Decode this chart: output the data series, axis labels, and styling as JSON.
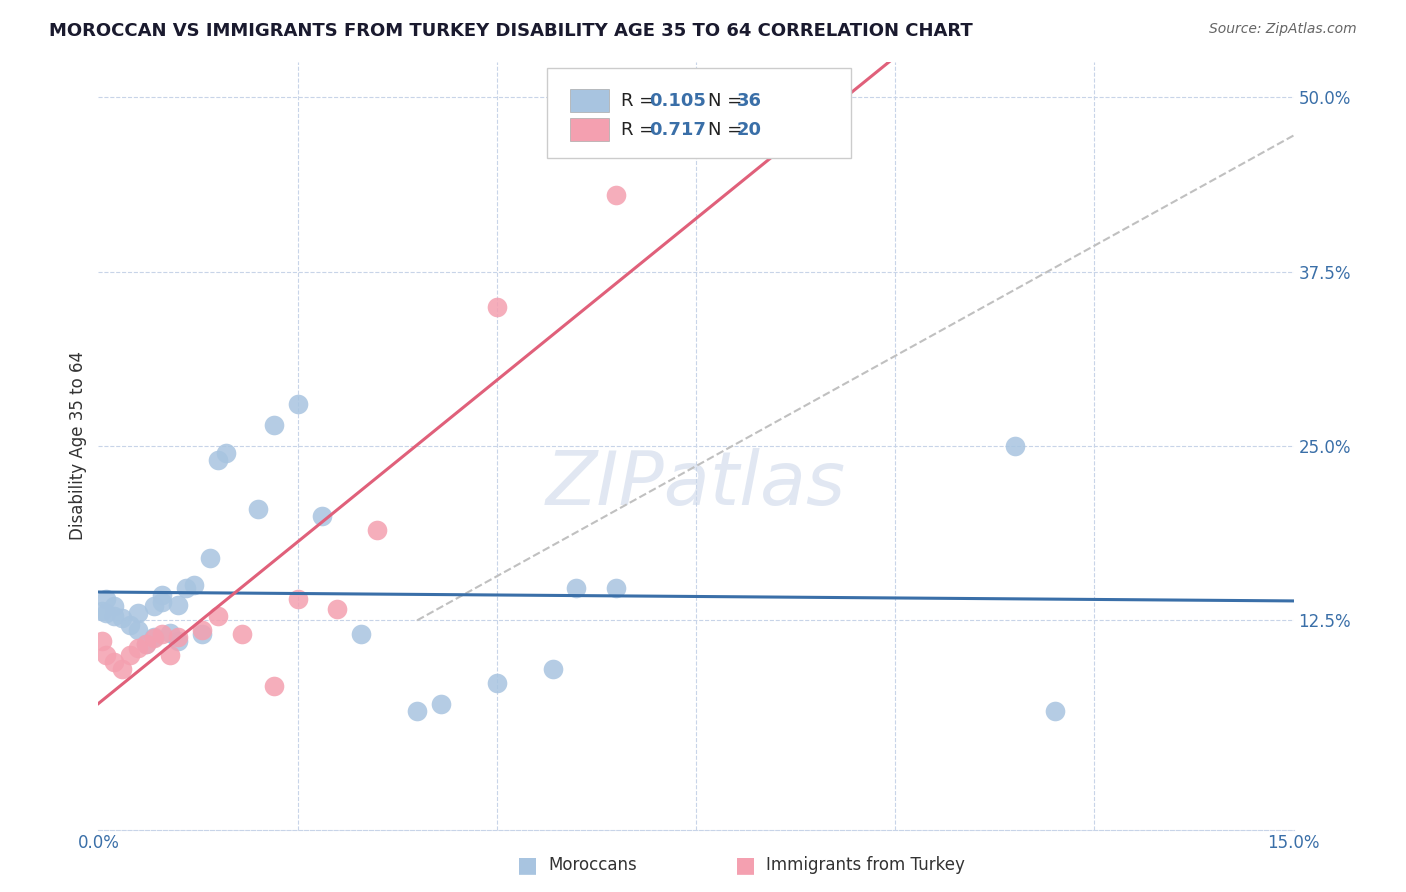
{
  "title": "MOROCCAN VS IMMIGRANTS FROM TURKEY DISABILITY AGE 35 TO 64 CORRELATION CHART",
  "source": "Source: ZipAtlas.com",
  "ylabel": "Disability Age 35 to 64",
  "xlim": [
    0.0,
    0.15
  ],
  "ylim": [
    -0.025,
    0.525
  ],
  "moroccan_R": 0.105,
  "moroccan_N": 36,
  "turkey_R": 0.717,
  "turkey_N": 20,
  "moroccan_color": "#a8c4e0",
  "turkey_color": "#f4a0b0",
  "moroccan_line_color": "#3a6fa8",
  "turkey_line_color": "#e0607a",
  "background_color": "#ffffff",
  "moroccan_x": [
    0.0005,
    0.001,
    0.001,
    0.002,
    0.002,
    0.003,
    0.004,
    0.005,
    0.005,
    0.006,
    0.007,
    0.007,
    0.008,
    0.008,
    0.009,
    0.01,
    0.01,
    0.011,
    0.012,
    0.013,
    0.014,
    0.015,
    0.016,
    0.02,
    0.022,
    0.025,
    0.028,
    0.033,
    0.04,
    0.043,
    0.05,
    0.057,
    0.065,
    0.115,
    0.12,
    0.06
  ],
  "moroccan_y": [
    0.132,
    0.14,
    0.13,
    0.128,
    0.135,
    0.127,
    0.122,
    0.13,
    0.118,
    0.108,
    0.113,
    0.135,
    0.143,
    0.138,
    0.116,
    0.11,
    0.136,
    0.148,
    0.15,
    0.115,
    0.17,
    0.24,
    0.245,
    0.205,
    0.265,
    0.28,
    0.2,
    0.115,
    0.06,
    0.065,
    0.08,
    0.09,
    0.148,
    0.25,
    0.06,
    0.148
  ],
  "turkey_x": [
    0.0005,
    0.001,
    0.002,
    0.003,
    0.004,
    0.005,
    0.006,
    0.007,
    0.008,
    0.009,
    0.01,
    0.013,
    0.015,
    0.018,
    0.022,
    0.025,
    0.03,
    0.035,
    0.05,
    0.065
  ],
  "turkey_y": [
    0.11,
    0.1,
    0.095,
    0.09,
    0.1,
    0.105,
    0.108,
    0.112,
    0.115,
    0.1,
    0.113,
    0.118,
    0.128,
    0.115,
    0.078,
    0.14,
    0.133,
    0.19,
    0.35,
    0.43
  ],
  "watermark": "ZIPatlas",
  "title_fontsize": 13,
  "legend_fontsize": 13
}
